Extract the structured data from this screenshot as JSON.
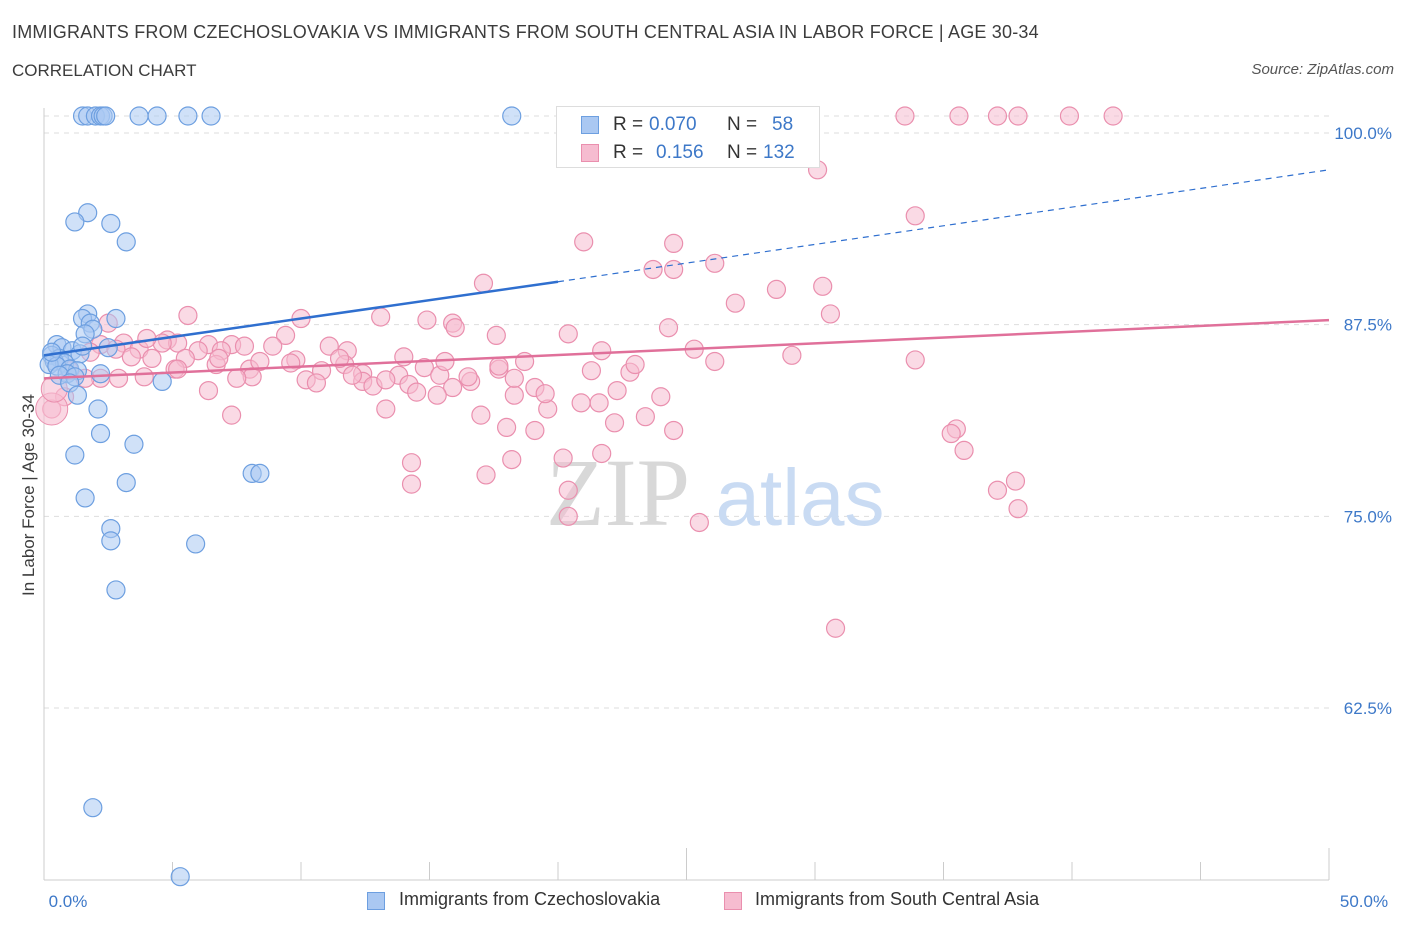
{
  "header": {
    "title": "IMMIGRANTS FROM CZECHOSLOVAKIA VS IMMIGRANTS FROM SOUTH CENTRAL ASIA IN LABOR FORCE | AGE 30-34",
    "subtitle": "CORRELATION CHART",
    "source": "Source: ZipAtlas.com"
  },
  "legend": {
    "rows": [
      {
        "r_label": "R =",
        "r_value": "0.070",
        "n_label": "N =",
        "n_value": "58"
      },
      {
        "r_label": "R =",
        "r_value": "0.156",
        "n_label": "N =",
        "n_value": "132"
      }
    ]
  },
  "bottom_legend": {
    "series1": "Immigrants from Czechoslovakia",
    "series2": "Immigrants from South Central Asia"
  },
  "watermark": {
    "zip": "ZIP",
    "atlas": "atlas"
  },
  "colors": {
    "blue_fill": "#aac8f2",
    "blue_stroke": "#6d9fe0",
    "blue_line": "#2f6fcf",
    "pink_fill": "#f6bcd0",
    "pink_stroke": "#ea8fae",
    "pink_line": "#e0709a",
    "axis_text": "#3d78c8",
    "grid": "#dddddd"
  },
  "chart_data": {
    "type": "scatter",
    "title": "IMMIGRANTS FROM CZECHOSLOVAKIA VS IMMIGRANTS FROM SOUTH CENTRAL ASIA IN LABOR FORCE | AGE 30-34",
    "xlabel": "",
    "ylabel": "In Labor Force | Age 30-34",
    "xlim": [
      0,
      50
    ],
    "ylim": [
      50,
      101
    ],
    "x_tick_labels": [
      "0.0%",
      "50.0%"
    ],
    "y_ticks": [
      {
        "value": 100,
        "label": "100.0%"
      },
      {
        "value": 87.5,
        "label": "87.5%"
      },
      {
        "value": 75,
        "label": "75.0%"
      },
      {
        "value": 62.5,
        "label": "62.5%"
      }
    ],
    "grid": true,
    "legend_position": "top-center",
    "series": [
      {
        "name": "Immigrants from Czechoslovakia",
        "color": "#aac8f2",
        "trend": {
          "x": [
            0,
            20,
            50
          ],
          "y": [
            85.5,
            90.3,
            97.6
          ],
          "solid_until": 20
        },
        "points": [
          [
            1.5,
            101
          ],
          [
            1.7,
            101
          ],
          [
            2.0,
            101
          ],
          [
            2.2,
            101
          ],
          [
            2.3,
            101
          ],
          [
            2.4,
            101
          ],
          [
            3.7,
            101
          ],
          [
            4.4,
            101
          ],
          [
            5.6,
            101
          ],
          [
            6.5,
            101
          ],
          [
            18.2,
            101
          ],
          [
            1.7,
            94.8
          ],
          [
            1.2,
            94.2
          ],
          [
            2.6,
            94.1
          ],
          [
            3.2,
            92.9
          ],
          [
            1.7,
            88.2
          ],
          [
            1.5,
            87.9
          ],
          [
            2.8,
            87.9
          ],
          [
            1.8,
            87.6
          ],
          [
            1.9,
            87.2
          ],
          [
            1.6,
            86.9
          ],
          [
            0.5,
            86.2
          ],
          [
            0.7,
            86.0
          ],
          [
            1.1,
            85.8
          ],
          [
            1.4,
            85.6
          ],
          [
            0.3,
            85.5
          ],
          [
            0.6,
            85.3
          ],
          [
            0.4,
            85.1
          ],
          [
            0.8,
            85.0
          ],
          [
            0.2,
            84.9
          ],
          [
            0.5,
            84.8
          ],
          [
            1.0,
            84.6
          ],
          [
            1.3,
            84.5
          ],
          [
            0.9,
            84.3
          ],
          [
            0.6,
            84.2
          ],
          [
            1.2,
            84.1
          ],
          [
            2.2,
            84.3
          ],
          [
            1.0,
            83.7
          ],
          [
            4.6,
            83.8
          ],
          [
            1.3,
            82.9
          ],
          [
            2.1,
            82.0
          ],
          [
            2.2,
            80.4
          ],
          [
            3.5,
            79.7
          ],
          [
            1.2,
            79.0
          ],
          [
            1.6,
            76.2
          ],
          [
            3.2,
            77.2
          ],
          [
            8.1,
            77.8
          ],
          [
            8.4,
            77.8
          ],
          [
            2.6,
            74.2
          ],
          [
            2.6,
            73.4
          ],
          [
            5.9,
            73.2
          ],
          [
            2.8,
            70.2
          ],
          [
            1.9,
            56.0
          ],
          [
            5.3,
            51.5
          ],
          [
            2.5,
            86.0
          ],
          [
            1.5,
            86.1
          ],
          [
            0.3,
            85.7
          ]
        ]
      },
      {
        "name": "Immigrants from South Central Asia",
        "color": "#f6bcd0",
        "trend": {
          "x": [
            0,
            50
          ],
          "y": [
            84.0,
            87.8
          ]
        },
        "points": [
          [
            33.5,
            101
          ],
          [
            35.6,
            101
          ],
          [
            37.1,
            101
          ],
          [
            37.9,
            101
          ],
          [
            39.9,
            101
          ],
          [
            41.6,
            101
          ],
          [
            30.1,
            97.6
          ],
          [
            33.9,
            94.6
          ],
          [
            21.0,
            92.9
          ],
          [
            24.5,
            92.8
          ],
          [
            26.1,
            91.5
          ],
          [
            23.7,
            91.1
          ],
          [
            24.5,
            91.1
          ],
          [
            17.1,
            90.2
          ],
          [
            28.5,
            89.8
          ],
          [
            30.3,
            90.0
          ],
          [
            26.9,
            88.9
          ],
          [
            30.6,
            88.2
          ],
          [
            5.6,
            88.1
          ],
          [
            13.1,
            88.0
          ],
          [
            10.0,
            87.9
          ],
          [
            14.9,
            87.8
          ],
          [
            15.9,
            87.6
          ],
          [
            16.0,
            87.3
          ],
          [
            24.3,
            87.3
          ],
          [
            20.4,
            86.9
          ],
          [
            17.6,
            86.8
          ],
          [
            9.4,
            86.8
          ],
          [
            4.8,
            86.5
          ],
          [
            5.2,
            86.3
          ],
          [
            4.6,
            86.3
          ],
          [
            3.1,
            86.3
          ],
          [
            2.2,
            86.2
          ],
          [
            7.3,
            86.2
          ],
          [
            6.4,
            86.2
          ],
          [
            7.8,
            86.1
          ],
          [
            8.9,
            86.1
          ],
          [
            11.1,
            86.1
          ],
          [
            11.8,
            85.8
          ],
          [
            2.8,
            85.9
          ],
          [
            3.7,
            85.9
          ],
          [
            21.7,
            85.8
          ],
          [
            25.3,
            85.9
          ],
          [
            6.0,
            85.8
          ],
          [
            6.9,
            85.8
          ],
          [
            14.0,
            85.4
          ],
          [
            5.5,
            85.3
          ],
          [
            4.2,
            85.3
          ],
          [
            9.8,
            85.2
          ],
          [
            9.6,
            85.0
          ],
          [
            6.7,
            84.9
          ],
          [
            18.7,
            85.1
          ],
          [
            33.9,
            85.2
          ],
          [
            11.7,
            84.9
          ],
          [
            14.8,
            84.7
          ],
          [
            17.7,
            84.6
          ],
          [
            21.3,
            84.5
          ],
          [
            5.1,
            84.6
          ],
          [
            8.0,
            84.6
          ],
          [
            10.8,
            84.5
          ],
          [
            12.4,
            84.3
          ],
          [
            15.4,
            84.2
          ],
          [
            22.8,
            84.4
          ],
          [
            8.1,
            84.1
          ],
          [
            13.8,
            84.2
          ],
          [
            3.9,
            84.1
          ],
          [
            2.2,
            84.0
          ],
          [
            2.9,
            84.0
          ],
          [
            1.6,
            84.0
          ],
          [
            10.2,
            83.9
          ],
          [
            12.4,
            83.8
          ],
          [
            14.2,
            83.6
          ],
          [
            16.6,
            83.8
          ],
          [
            19.1,
            83.4
          ],
          [
            10.6,
            83.7
          ],
          [
            12.8,
            83.5
          ],
          [
            15.9,
            83.4
          ],
          [
            6.4,
            83.2
          ],
          [
            14.5,
            83.1
          ],
          [
            15.3,
            82.9
          ],
          [
            18.3,
            82.9
          ],
          [
            24.0,
            82.8
          ],
          [
            21.6,
            82.4
          ],
          [
            13.3,
            82.0
          ],
          [
            19.6,
            82.0
          ],
          [
            20.9,
            82.4
          ],
          [
            17.0,
            81.6
          ],
          [
            7.3,
            81.6
          ],
          [
            23.4,
            81.5
          ],
          [
            22.2,
            81.1
          ],
          [
            18.0,
            80.8
          ],
          [
            19.1,
            80.6
          ],
          [
            24.5,
            80.6
          ],
          [
            35.5,
            80.7
          ],
          [
            35.3,
            80.4
          ],
          [
            35.8,
            79.3
          ],
          [
            20.2,
            78.8
          ],
          [
            18.2,
            78.7
          ],
          [
            14.3,
            78.5
          ],
          [
            21.7,
            79.1
          ],
          [
            17.2,
            77.7
          ],
          [
            14.3,
            77.1
          ],
          [
            20.4,
            76.7
          ],
          [
            37.8,
            77.3
          ],
          [
            37.1,
            76.7
          ],
          [
            37.9,
            75.5
          ],
          [
            20.4,
            75.0
          ],
          [
            25.5,
            74.6
          ],
          [
            30.8,
            67.7
          ],
          [
            0.8,
            82.8
          ],
          [
            0.3,
            82.0
          ],
          [
            1.0,
            84.5
          ],
          [
            2.5,
            87.6
          ],
          [
            1.8,
            85.7
          ],
          [
            3.4,
            85.4
          ],
          [
            4.0,
            86.6
          ],
          [
            5.2,
            84.6
          ],
          [
            6.8,
            85.3
          ],
          [
            7.5,
            84.0
          ],
          [
            8.4,
            85.1
          ],
          [
            11.5,
            85.3
          ],
          [
            12.0,
            84.2
          ],
          [
            13.3,
            83.9
          ],
          [
            15.6,
            85.1
          ],
          [
            16.5,
            84.1
          ],
          [
            17.7,
            84.8
          ],
          [
            18.3,
            84.0
          ],
          [
            19.5,
            83.0
          ],
          [
            22.3,
            83.2
          ],
          [
            23.0,
            84.9
          ],
          [
            26.1,
            85.1
          ],
          [
            29.1,
            85.5
          ]
        ]
      }
    ]
  }
}
